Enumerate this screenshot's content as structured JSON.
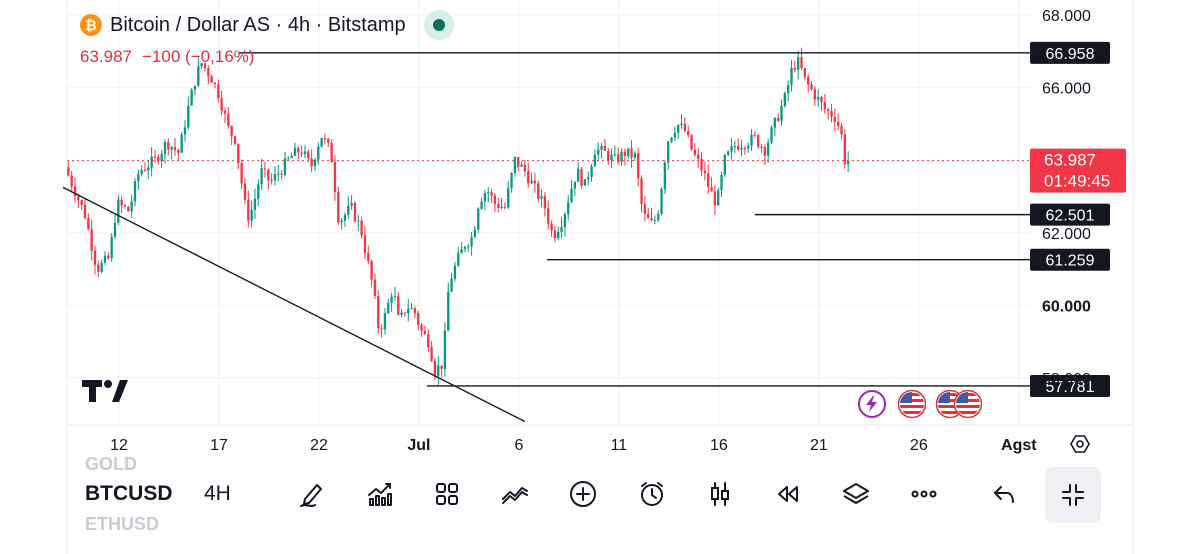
{
  "header": {
    "symbol_icon": "bitcoin-icon",
    "title": "Bitcoin / Dollar AS · 4h · Bitstamp",
    "last_price": "63.987",
    "change": "−100 (−0,16%)",
    "live_indicator_color": "#0d6e5a"
  },
  "colors": {
    "up": "#089981",
    "down": "#f23645",
    "accent_red": "#e2323c"
  },
  "chart_data": {
    "type": "candlestick",
    "title": "Bitcoin / Dollar AS · 4h · Bitstamp",
    "ylim": [
      56500,
      68200
    ],
    "y_ticks": [
      {
        "value": 68000,
        "label": "68.000"
      },
      {
        "value": 66000,
        "label": "66.000"
      },
      {
        "value": 62000,
        "label": "62.000"
      },
      {
        "value": 60000,
        "label": "60.000"
      },
      {
        "value": 58000,
        "label": "58.000"
      }
    ],
    "x_ticks": [
      {
        "day": 12,
        "label": "12"
      },
      {
        "day": 17,
        "label": "17"
      },
      {
        "day": 22,
        "label": "22"
      },
      {
        "day": 27,
        "label": "Jul"
      },
      {
        "day": 32,
        "label": "6"
      },
      {
        "day": 37,
        "label": "11"
      },
      {
        "day": 42,
        "label": "16"
      },
      {
        "day": 47,
        "label": "21"
      },
      {
        "day": 52,
        "label": "26"
      },
      {
        "day": 57,
        "label": "Agst"
      }
    ],
    "price_labels": [
      {
        "value": 66958,
        "label": "66.958",
        "line_from_day": 18
      },
      {
        "value": 62501,
        "label": "62.501",
        "line_from_day": 43.8
      },
      {
        "value": 61259,
        "label": "61.259",
        "line_from_day": 33.4
      },
      {
        "value": 57781,
        "label": "57.781",
        "line_from_day": 27.4
      }
    ],
    "current_price": {
      "value": 63987,
      "label": "63.987",
      "countdown": "01:49:45"
    },
    "trendline": {
      "from": {
        "day": 9.2,
        "price": 63250
      },
      "to": {
        "day": 32.3,
        "price": 56800
      }
    },
    "key_points": [
      [
        9.3,
        63800
      ],
      [
        10.3,
        62500
      ],
      [
        10.9,
        61000
      ],
      [
        11.5,
        61300
      ],
      [
        11.9,
        62800
      ],
      [
        12.5,
        62600
      ],
      [
        13.0,
        63700
      ],
      [
        13.8,
        64000
      ],
      [
        14.4,
        64500
      ],
      [
        15.0,
        64200
      ],
      [
        15.4,
        65300
      ],
      [
        15.8,
        66200
      ],
      [
        16.1,
        66700
      ],
      [
        16.6,
        66300
      ],
      [
        17.0,
        65800
      ],
      [
        17.5,
        64800
      ],
      [
        17.8,
        64600
      ],
      [
        18.4,
        62400
      ],
      [
        18.7,
        62700
      ],
      [
        19.1,
        63700
      ],
      [
        19.6,
        63400
      ],
      [
        20.2,
        63800
      ],
      [
        20.6,
        64100
      ],
      [
        21.1,
        64300
      ],
      [
        21.6,
        63800
      ],
      [
        22.1,
        64700
      ],
      [
        22.6,
        64200
      ],
      [
        23.0,
        62300
      ],
      [
        23.6,
        62700
      ],
      [
        24.1,
        62100
      ],
      [
        24.7,
        60500
      ],
      [
        25.0,
        59300
      ],
      [
        25.3,
        59700
      ],
      [
        25.7,
        60500
      ],
      [
        26.0,
        59500
      ],
      [
        26.4,
        60000
      ],
      [
        26.8,
        59800
      ],
      [
        27.1,
        59300
      ],
      [
        27.5,
        59000
      ],
      [
        27.8,
        58200
      ],
      [
        28.2,
        58400
      ],
      [
        28.5,
        60600
      ],
      [
        28.9,
        61200
      ],
      [
        29.3,
        61700
      ],
      [
        29.7,
        61900
      ],
      [
        30.0,
        62900
      ],
      [
        30.4,
        63200
      ],
      [
        30.8,
        62800
      ],
      [
        31.3,
        62700
      ],
      [
        31.8,
        64000
      ],
      [
        32.3,
        63700
      ],
      [
        32.8,
        63200
      ],
      [
        33.3,
        62700
      ],
      [
        33.7,
        61900
      ],
      [
        34.2,
        62400
      ],
      [
        34.6,
        63200
      ],
      [
        34.9,
        63700
      ],
      [
        35.3,
        63300
      ],
      [
        35.8,
        64300
      ],
      [
        36.3,
        64200
      ],
      [
        36.8,
        64000
      ],
      [
        37.3,
        64200
      ],
      [
        37.8,
        64100
      ],
      [
        38.2,
        62500
      ],
      [
        38.7,
        62200
      ],
      [
        39.0,
        62700
      ],
      [
        39.4,
        64500
      ],
      [
        39.9,
        65000
      ],
      [
        40.3,
        64800
      ],
      [
        40.7,
        64200
      ],
      [
        41.2,
        63700
      ],
      [
        41.6,
        63100
      ],
      [
        41.9,
        62800
      ],
      [
        42.3,
        64000
      ],
      [
        42.8,
        64400
      ],
      [
        43.3,
        64500
      ],
      [
        43.8,
        64600
      ],
      [
        44.3,
        64300
      ],
      [
        44.8,
        65000
      ],
      [
        45.3,
        65700
      ],
      [
        45.7,
        66600
      ],
      [
        46.0,
        66700
      ],
      [
        46.3,
        66200
      ],
      [
        46.8,
        65800
      ],
      [
        47.3,
        65400
      ],
      [
        47.8,
        65200
      ],
      [
        48.1,
        64800
      ],
      [
        48.3,
        64000
      ],
      [
        48.6,
        63987
      ]
    ],
    "grid": true,
    "legend": "none"
  },
  "toolbar": {
    "symbol_above": "GOLD",
    "symbol": "BTCUSD",
    "symbol_below": "ETHUSD",
    "timeframe": "4H",
    "icons": [
      "draw-icon",
      "indicators-icon",
      "layouts-icon",
      "compare-icon",
      "add-icon",
      "alert-icon",
      "candle-type-icon",
      "replay-icon",
      "layers-icon",
      "more-icon",
      "undo-icon",
      "collapse-icon"
    ]
  },
  "events": {
    "icons": [
      "lightning-icon",
      "us-flag-icon",
      "us-flag-icon",
      "us-flag-icon"
    ]
  }
}
